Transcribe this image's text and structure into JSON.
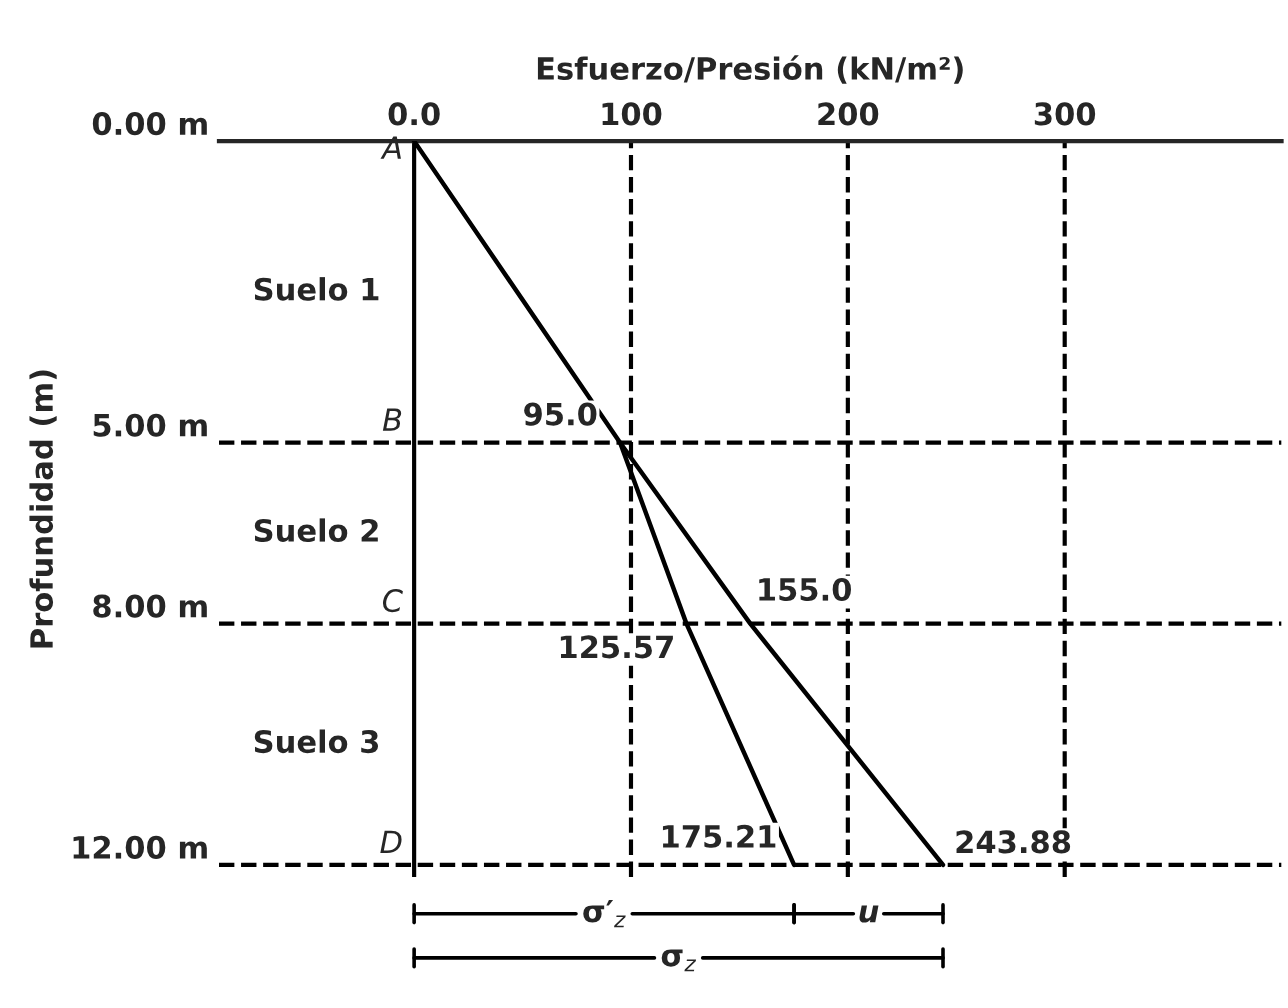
{
  "chart_data": {
    "type": "line",
    "orientation": "horizontal",
    "xlabel": "Esfuerzo/Presión (kN/m²)",
    "ylabel": "Profundidad (m)",
    "xlim": [
      -90,
      400
    ],
    "xticks": [
      {
        "value": 0,
        "label": "0.0"
      },
      100,
      200,
      300
    ],
    "ylim": [
      12.2,
      0
    ],
    "yticks": [
      {
        "value": 0,
        "label": "0.00 m"
      },
      {
        "value": 5,
        "label": "5.00 m"
      },
      {
        "value": 8,
        "label": "8.00 m"
      },
      {
        "value": 12,
        "label": "12.00 m"
      }
    ],
    "series": [
      {
        "color": "#000000",
        "x": [
          0,
          5,
          8,
          12
        ],
        "values": [
          0,
          95,
          155,
          243.88
        ],
        "value_labels": [
          null,
          "95.0",
          "155.0",
          "243.88"
        ]
      },
      {
        "color": "#000000",
        "x": [
          5,
          8,
          12
        ],
        "values": [
          95,
          125.57,
          175.21
        ],
        "value_labels": [
          null,
          "125.57",
          "175.21"
        ]
      }
    ],
    "ref_lines": [
      {
        "axis": "x",
        "value": 0,
        "color": "#000000",
        "line_style": "solid"
      },
      {
        "axis": "x",
        "value": 100,
        "color": "#000000",
        "line_style": "dashed"
      },
      {
        "axis": "x",
        "value": 200,
        "color": "#000000",
        "line_style": "dashed"
      },
      {
        "axis": "x",
        "value": 300,
        "color": "#000000",
        "line_style": "dashed"
      },
      {
        "axis": "y",
        "value": 5,
        "color": "#000000",
        "line_style": "dashed"
      },
      {
        "axis": "y",
        "value": 8,
        "color": "#000000",
        "line_style": "dashed"
      },
      {
        "axis": "y",
        "value": 12,
        "color": "#000000",
        "line_style": "dashed"
      }
    ],
    "annotations": [
      "A",
      "B",
      "C",
      "D",
      "Suelo 1",
      "Suelo 2",
      "Suelo 3",
      "σ′$_{z}$",
      "u",
      "σ$_{z}$"
    ]
  }
}
